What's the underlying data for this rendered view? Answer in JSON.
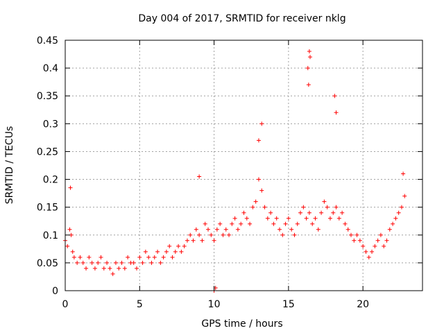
{
  "chart_data": {
    "type": "scatter",
    "title": "Day 004 of 2017, SRMTID for receiver nklg",
    "xlabel": "GPS time / hours",
    "ylabel": "SRMTID / TECUs",
    "xlim": [
      0,
      24
    ],
    "ylim": [
      0,
      0.45
    ],
    "xticks": [
      0,
      5,
      10,
      15,
      20
    ],
    "xtick_labels": [
      "0",
      "5",
      "10",
      "15",
      "20"
    ],
    "yticks": [
      0,
      0.05,
      0.1,
      0.15,
      0.2,
      0.25,
      0.3,
      0.35,
      0.4,
      0.45
    ],
    "ytick_labels": [
      "0",
      "0.05",
      "0.1",
      "0.15",
      "0.2",
      "0.25",
      "0.3",
      "0.35",
      "0.4",
      "0.45"
    ],
    "grid": true,
    "marker": "+",
    "color": "#ff0000",
    "series": [
      {
        "name": "SRMTID",
        "x": [
          0.0,
          0.15,
          0.3,
          0.4,
          0.5,
          0.6,
          0.8,
          1.0,
          1.2,
          1.4,
          1.6,
          1.8,
          2.0,
          2.2,
          2.4,
          2.6,
          2.8,
          3.0,
          3.2,
          3.4,
          3.6,
          3.8,
          4.0,
          4.2,
          4.4,
          4.6,
          4.8,
          5.0,
          5.2,
          5.4,
          5.6,
          5.8,
          6.0,
          6.2,
          6.4,
          6.6,
          6.8,
          7.0,
          7.2,
          7.4,
          7.6,
          7.8,
          8.0,
          8.2,
          8.4,
          8.6,
          8.8,
          9.0,
          9.2,
          9.4,
          9.6,
          9.8,
          10.0,
          10.2,
          10.4,
          10.6,
          10.8,
          11.0,
          11.2,
          11.4,
          11.6,
          11.8,
          12.0,
          12.2,
          12.4,
          12.6,
          12.8,
          13.0,
          13.2,
          13.4,
          13.6,
          13.8,
          14.0,
          14.2,
          14.4,
          14.6,
          14.8,
          15.0,
          15.2,
          15.4,
          15.6,
          15.8,
          16.0,
          16.2,
          16.4,
          16.6,
          16.8,
          17.0,
          17.2,
          17.4,
          17.6,
          17.8,
          18.0,
          18.2,
          18.4,
          18.6,
          18.8,
          19.0,
          19.2,
          19.4,
          19.6,
          19.8,
          20.0,
          20.2,
          20.4,
          20.6,
          20.8,
          21.0,
          21.2,
          21.4,
          21.6,
          21.8,
          22.0,
          22.2,
          22.4,
          22.6,
          22.8,
          0.35,
          9.0,
          10.0,
          10.1,
          13.0,
          13.2,
          16.3,
          16.4,
          16.35,
          16.45,
          18.1,
          18.2,
          22.7
        ],
        "y": [
          0.09,
          0.08,
          0.11,
          0.1,
          0.07,
          0.06,
          0.05,
          0.06,
          0.05,
          0.04,
          0.06,
          0.05,
          0.04,
          0.05,
          0.06,
          0.04,
          0.05,
          0.04,
          0.03,
          0.05,
          0.04,
          0.05,
          0.04,
          0.06,
          0.05,
          0.05,
          0.04,
          0.06,
          0.05,
          0.07,
          0.06,
          0.05,
          0.06,
          0.07,
          0.05,
          0.06,
          0.07,
          0.08,
          0.06,
          0.07,
          0.08,
          0.07,
          0.08,
          0.09,
          0.1,
          0.09,
          0.11,
          0.1,
          0.09,
          0.12,
          0.11,
          0.1,
          0.09,
          0.11,
          0.12,
          0.1,
          0.11,
          0.1,
          0.12,
          0.13,
          0.11,
          0.12,
          0.14,
          0.13,
          0.12,
          0.15,
          0.16,
          0.2,
          0.18,
          0.15,
          0.13,
          0.14,
          0.12,
          0.13,
          0.11,
          0.1,
          0.12,
          0.13,
          0.11,
          0.1,
          0.12,
          0.14,
          0.15,
          0.13,
          0.14,
          0.12,
          0.13,
          0.11,
          0.14,
          0.16,
          0.15,
          0.13,
          0.14,
          0.15,
          0.13,
          0.14,
          0.12,
          0.11,
          0.1,
          0.09,
          0.1,
          0.09,
          0.08,
          0.07,
          0.06,
          0.07,
          0.08,
          0.09,
          0.1,
          0.08,
          0.09,
          0.11,
          0.12,
          0.13,
          0.14,
          0.15,
          0.17,
          0.185,
          0.205,
          0.0,
          0.005,
          0.27,
          0.3,
          0.4,
          0.43,
          0.37,
          0.42,
          0.35,
          0.32,
          0.21
        ]
      }
    ]
  }
}
